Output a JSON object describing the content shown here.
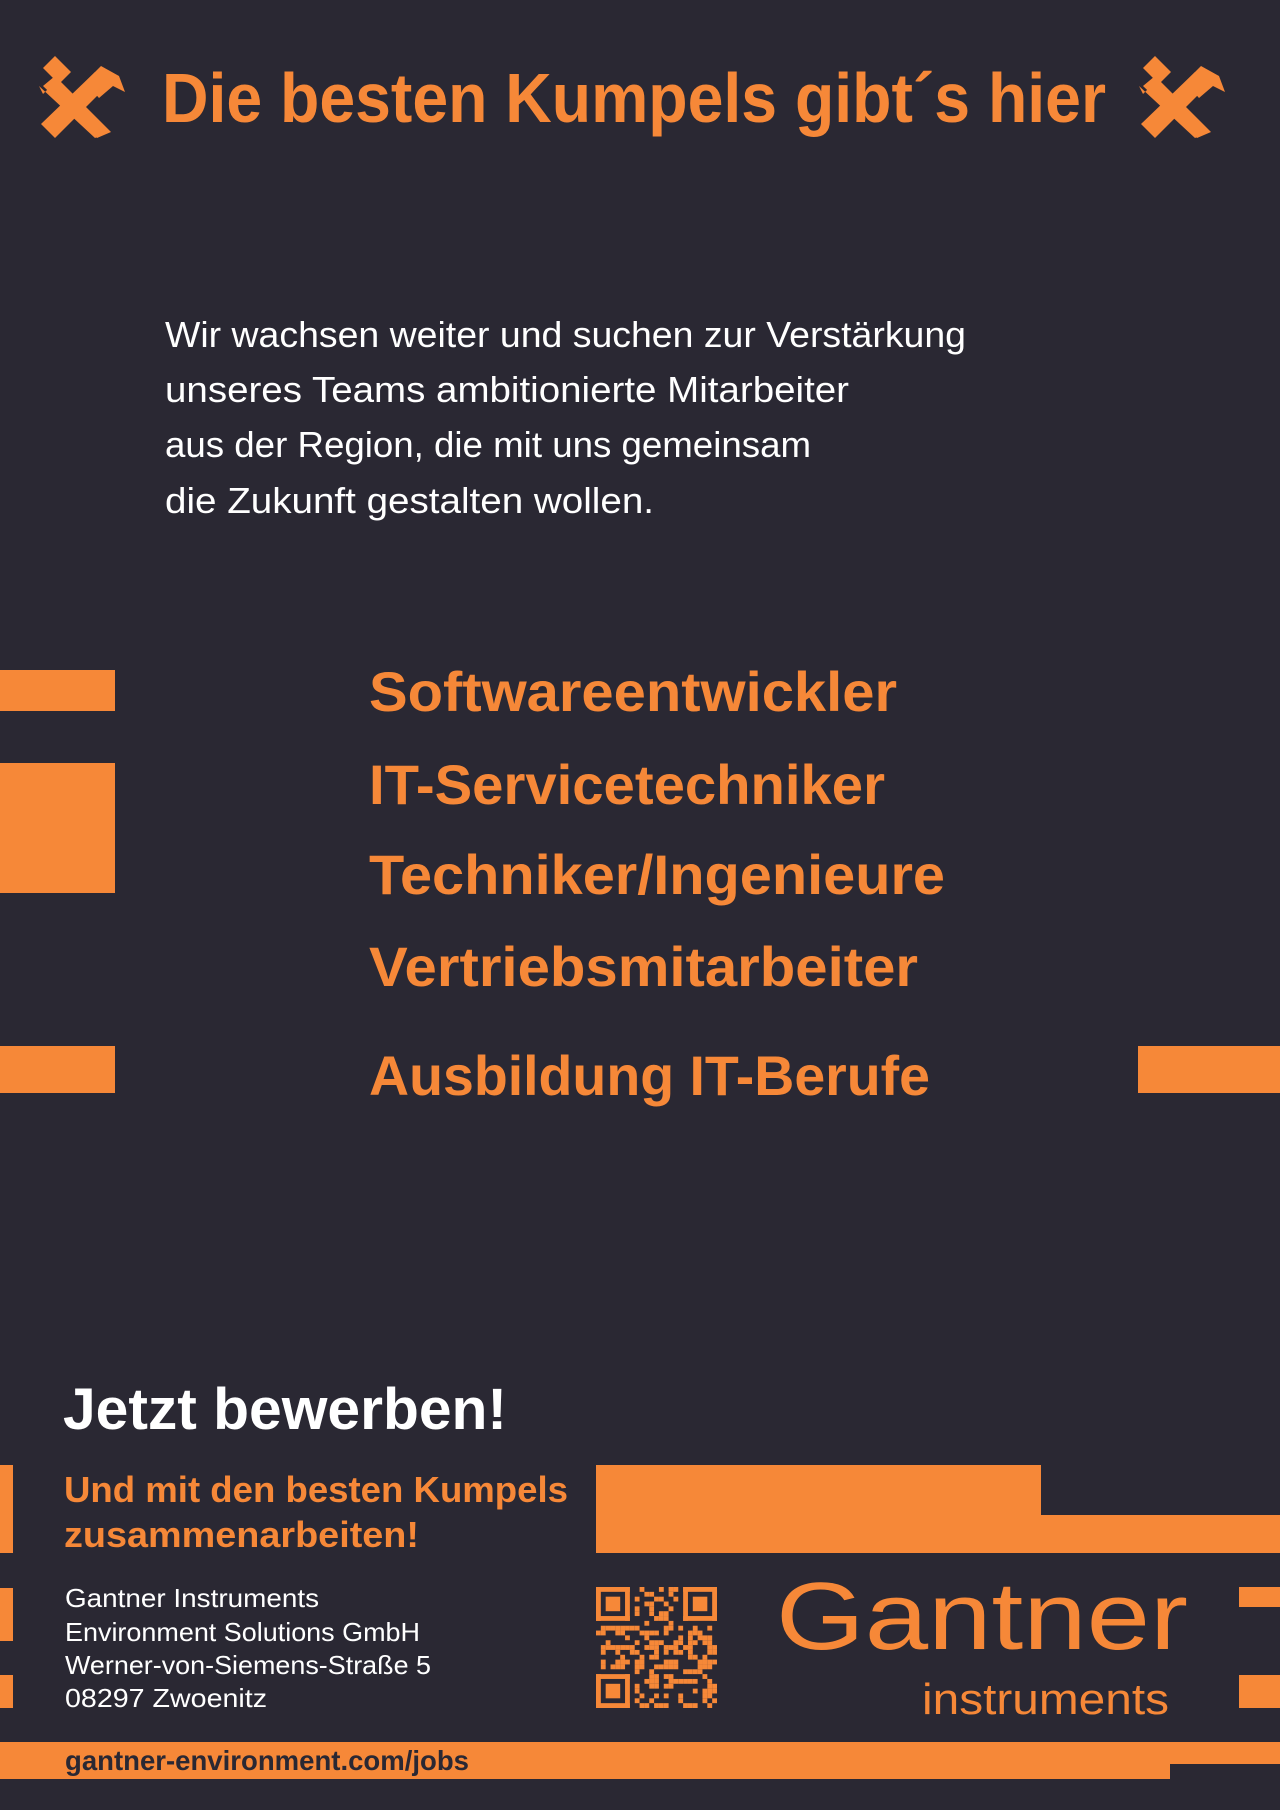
{
  "header": {
    "title": "Die besten Kumpels gibt´s hier",
    "icon": "crossed-hammers-icon"
  },
  "intro": {
    "lines": [
      "Wir wachsen weiter und suchen zur Verstärkung",
      "unseres Teams ambitionierte Mitarbeiter",
      "aus der Region, die mit uns gemeinsam",
      "die Zukunft gestalten wollen."
    ]
  },
  "jobs": [
    "Softwareentwickler",
    "IT-Servicetechniker",
    "Techniker/Ingenieure",
    "Vertriebsmitarbeiter",
    "Ausbildung IT-Berufe"
  ],
  "cta": {
    "title": "Jetzt bewerben!",
    "subtitle_lines": [
      "Und mit den besten Kumpels",
      "zusammenarbeiten!"
    ]
  },
  "address": [
    "Gantner Instruments",
    "Environment Solutions GmbH",
    "Werner-von-Siemens-Straße 5",
    "08297 Zwoenitz"
  ],
  "logo": {
    "name": "Gantner",
    "sub": "instruments"
  },
  "footer": {
    "url": "gantner-environment.com/jobs"
  },
  "colors": {
    "background": "#2a2833",
    "accent": "#f68838",
    "text": "#ffffff"
  }
}
